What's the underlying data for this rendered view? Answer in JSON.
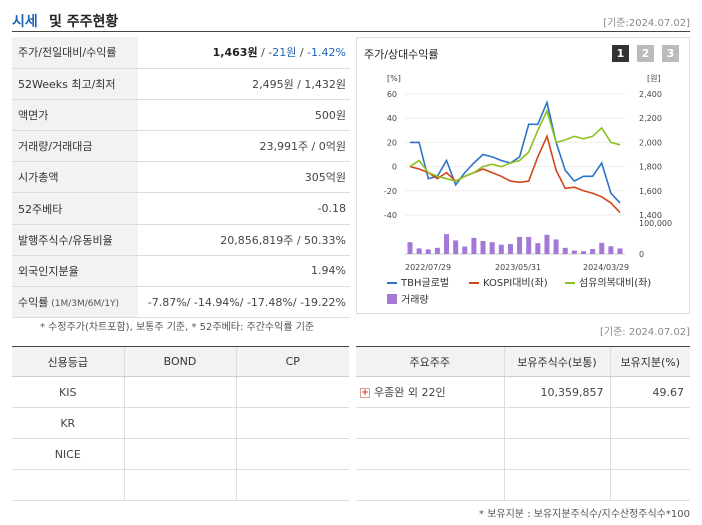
{
  "header": {
    "title_colored": "시세",
    "title_rest": "및 주주현황",
    "date": "[기준:2024.07.02]"
  },
  "info": {
    "rows": [
      {
        "label": "주가/전일대비/수익률",
        "price": "1,463원",
        "sep1": " / ",
        "change": "-21원",
        "sep2": " / ",
        "rate": "-1.42%"
      },
      {
        "label": "52Weeks 최고/최저",
        "value": "2,495원 / 1,432원"
      },
      {
        "label": "액면가",
        "value": "500원"
      },
      {
        "label": "거래량/거래대금",
        "value": "23,991주 / 0억원"
      },
      {
        "label": "시가총액",
        "value": "305억원"
      },
      {
        "label": "52주베타",
        "value": "-0.18"
      },
      {
        "label": "발행주식수/유동비율",
        "value": "20,856,819주 / 50.33%"
      },
      {
        "label": "외국인지분율",
        "value": "1.94%"
      },
      {
        "label": "수익률",
        "label_small": " (1M/3M/6M/1Y)",
        "value": "-7.87%/ -14.94%/ -17.48%/ -19.22%"
      }
    ],
    "note": "* 수정주가(차트포함), 보통주 기준, * 52주베타: 주간수익률 기준"
  },
  "chart": {
    "title": "주가/상대수익률",
    "pages": [
      "1",
      "2",
      "3"
    ],
    "left_unit": "[%]",
    "right_unit": "[원]",
    "left_ticks": [
      "60",
      "40",
      "20",
      "0",
      "-20",
      "-40"
    ],
    "right_ticks": [
      "2,400",
      "2,200",
      "2,000",
      "1,800",
      "1,600",
      "1,400"
    ],
    "vol_ticks": [
      "100,000",
      "0"
    ],
    "x_ticks": [
      "2022/07/29",
      "2023/05/31",
      "2024/03/29"
    ],
    "legend": [
      "TBH글로벌",
      "KOSPI대비(좌)",
      "섬유의복대비(좌)",
      "거래량"
    ],
    "colors": {
      "stock": "#2e73c8",
      "kospi": "#d1451b",
      "textile": "#8cc21f",
      "volume": "#a479d6"
    }
  },
  "chart_data": {
    "type": "line",
    "x_ticks": [
      "2022/07/29",
      "2023/05/31",
      "2024/03/29"
    ],
    "ylim": [
      -45,
      65
    ],
    "y2lim": [
      1350,
      2450
    ],
    "series": [
      {
        "name": "TBH글로벌",
        "values": [
          20,
          20,
          -10,
          -8,
          5,
          -15,
          -5,
          3,
          10,
          8,
          5,
          3,
          8,
          35,
          35,
          53,
          20,
          -3,
          -12,
          -8,
          -8,
          3,
          -22,
          -30
        ]
      },
      {
        "name": "KOSPI대비(좌)",
        "values": [
          0,
          -2,
          -5,
          -10,
          -5,
          -12,
          -8,
          -5,
          -2,
          -5,
          -8,
          -12,
          -13,
          -12,
          8,
          25,
          -3,
          -18,
          -17,
          -20,
          -22,
          -25,
          -30,
          -38
        ]
      },
      {
        "name": "섬유의복대비(좌)",
        "values": [
          0,
          5,
          -5,
          -8,
          -10,
          -12,
          -8,
          -5,
          0,
          2,
          0,
          3,
          5,
          12,
          30,
          46,
          20,
          22,
          25,
          23,
          25,
          32,
          20,
          18
        ]
      },
      {
        "name": "거래량",
        "values": [
          38000,
          18000,
          15000,
          20000,
          64000,
          44000,
          24000,
          52000,
          42000,
          38000,
          30000,
          32000,
          55000,
          55000,
          35000,
          62000,
          47000,
          20000,
          11000,
          9000,
          16000,
          36000,
          25000,
          18000
        ]
      }
    ]
  },
  "credit": {
    "headers": [
      "신용등급",
      "BOND",
      "CP"
    ],
    "rows": [
      [
        "KIS",
        "",
        ""
      ],
      [
        "KR",
        "",
        ""
      ],
      [
        "NICE",
        "",
        ""
      ],
      [
        "",
        "",
        ""
      ]
    ]
  },
  "holders": {
    "date": "[기준: 2024.07.02]",
    "headers": [
      "주요주주",
      "보유주식수(보통)",
      "보유지분(%)"
    ],
    "rows": [
      {
        "name": "우종완 외 22인",
        "shares": "10,359,857",
        "pct": "49.67"
      },
      {
        "name": "",
        "shares": "",
        "pct": ""
      },
      {
        "name": "",
        "shares": "",
        "pct": ""
      },
      {
        "name": "",
        "shares": "",
        "pct": ""
      }
    ],
    "note": "* 보유지분 : 보유지분주식수/지수산정주식수*100"
  }
}
